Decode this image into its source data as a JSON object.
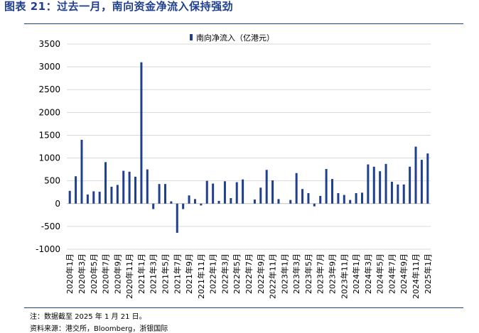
{
  "figure": {
    "title": "图表 21：过去一月，南向资金净流入保持强劲",
    "note": "注：数据截至 2025 年 1 月 21 日。",
    "source": "资料来源：港交所，Bloomberg，浙银国际"
  },
  "colors": {
    "bar": "#1f3f8f",
    "title": "#1f3f8f",
    "grid": "#d9d9d9"
  },
  "chart_data": {
    "type": "bar",
    "title": "",
    "xlabel": "",
    "ylabel": "",
    "series": [
      {
        "name": "南向净流入（亿港元）",
        "values": [
          280,
          600,
          1400,
          200,
          270,
          260,
          910,
          370,
          410,
          720,
          700,
          590,
          3100,
          750,
          -120,
          430,
          430,
          50,
          -640,
          -120,
          180,
          100,
          -40,
          500,
          440,
          60,
          490,
          120,
          470,
          530,
          0,
          90,
          350,
          740,
          510,
          100,
          0,
          80,
          670,
          320,
          230,
          -60,
          170,
          760,
          540,
          230,
          190,
          80,
          230,
          240,
          860,
          810,
          710,
          870,
          480,
          420,
          420,
          810,
          1250,
          960,
          1100
        ]
      }
    ],
    "categories": [
      "2020年1月",
      "2020年2月",
      "2020年3月",
      "2020年4月",
      "2020年5月",
      "2020年6月",
      "2020年7月",
      "2020年8月",
      "2020年9月",
      "2020年10月",
      "2020年11月",
      "2020年12月",
      "2021年1月",
      "2021年2月",
      "2021年3月",
      "2021年4月",
      "2021年5月",
      "2021年6月",
      "2021年7月",
      "2021年8月",
      "2021年9月",
      "2021年10月",
      "2021年11月",
      "2021年12月",
      "2022年1月",
      "2022年2月",
      "2022年3月",
      "2022年4月",
      "2022年5月",
      "2022年6月",
      "2022年7月",
      "2022年8月",
      "2022年9月",
      "2022年10月",
      "2022年11月",
      "2022年12月",
      "2023年1月",
      "2023年2月",
      "2023年3月",
      "2023年4月",
      "2023年5月",
      "2023年6月",
      "2023年7月",
      "2023年8月",
      "2023年9月",
      "2023年10月",
      "2023年11月",
      "2023年12月",
      "2024年1月",
      "2024年2月",
      "2024年3月",
      "2024年4月",
      "2024年5月",
      "2024年6月",
      "2024年7月",
      "2024年8月",
      "2024年9月",
      "2024年10月",
      "2024年11月",
      "2024年12月",
      "2025年1月"
    ],
    "x_tick_labels": [
      "2020年1月",
      "2020年3月",
      "2020年5月",
      "2020年7月",
      "2020年9月",
      "2020年11月",
      "2021年1月",
      "2021年3月",
      "2021年5月",
      "2021年7月",
      "2021年9月",
      "2021年11月",
      "2022年1月",
      "2022年3月",
      "2022年5月",
      "2022年7月",
      "2022年9月",
      "2022年11月",
      "2023年1月",
      "2023年3月",
      "2023年5月",
      "2023年7月",
      "2023年9月",
      "2023年11月",
      "2024年1月",
      "2024年3月",
      "2024年5月",
      "2024年7月",
      "2024年9月",
      "2024年11月",
      "2025年1月"
    ],
    "y_ticks": [
      "3500",
      "3000",
      "2500",
      "2000",
      "1500",
      "1000",
      "500",
      "0",
      "-500",
      "-1000"
    ],
    "ylim": [
      -1000,
      3500
    ],
    "grid": true,
    "legend": "top-center"
  }
}
